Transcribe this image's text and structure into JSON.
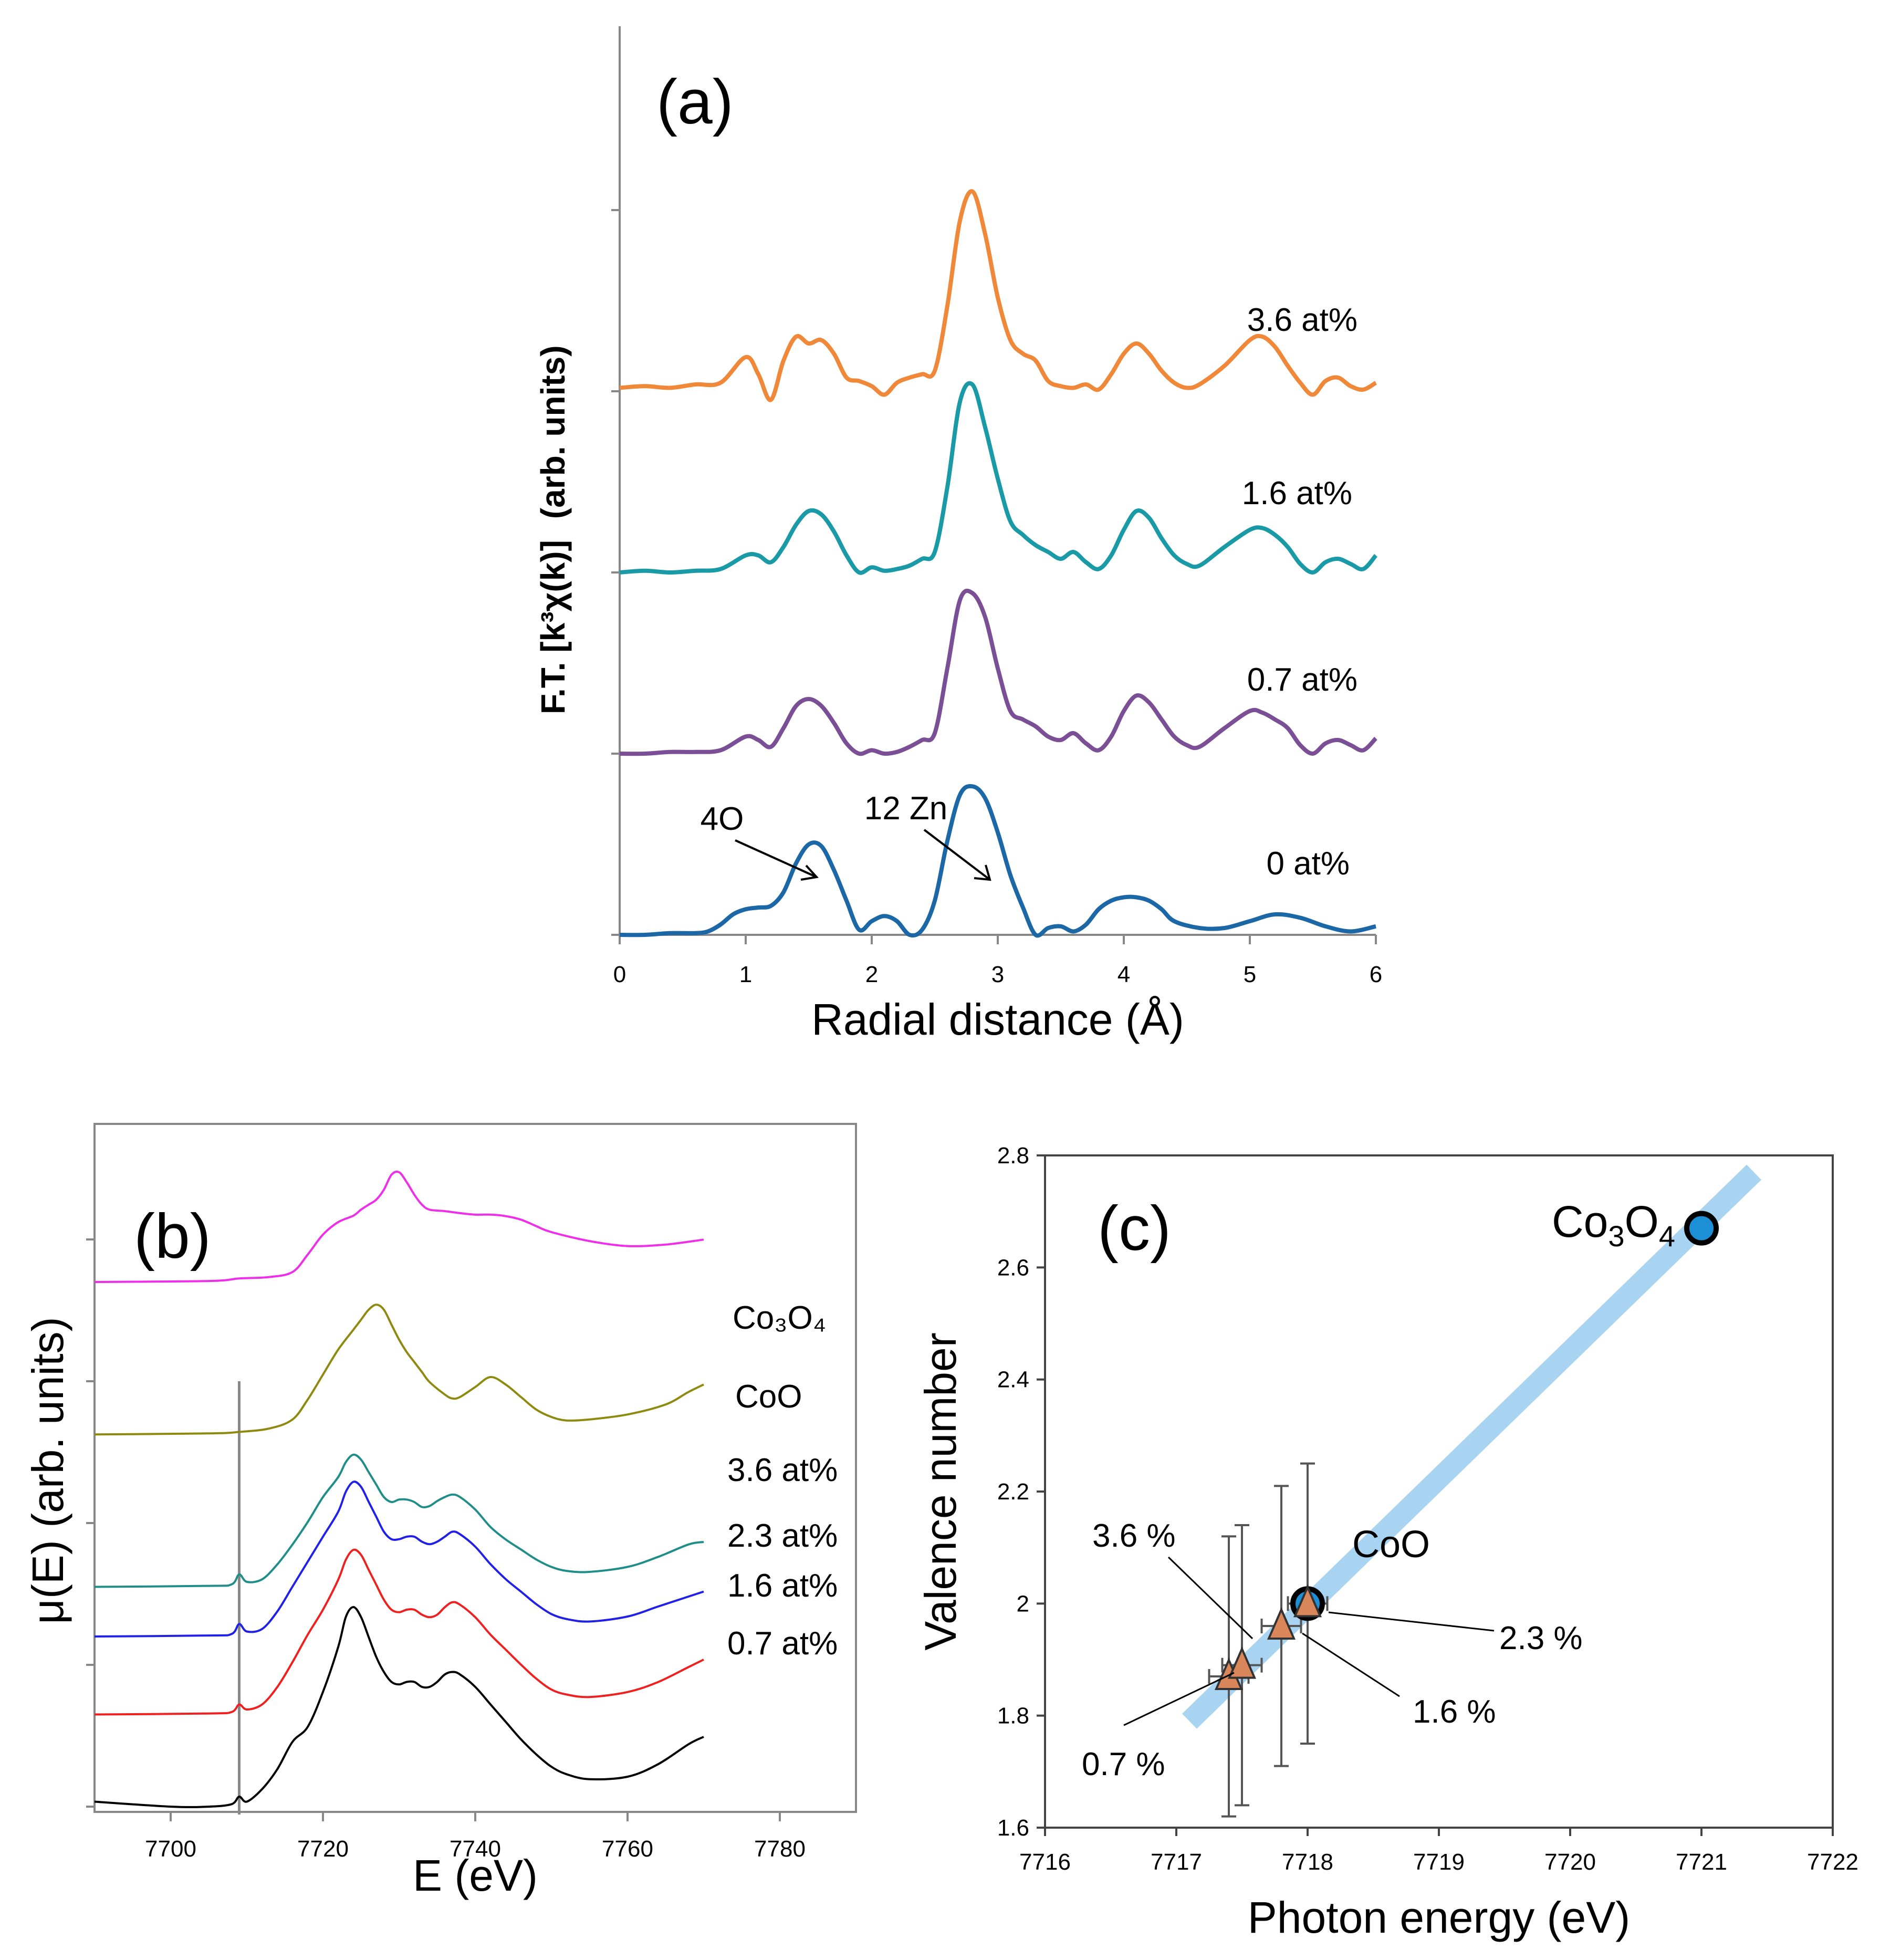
{
  "colors": {
    "a_3.6": "#f0883a",
    "a_1.6": "#1a9aa6",
    "a_0.7": "#7a4f96",
    "a_0": "#1c67a6",
    "b_Co3O4": "#ee2ee8",
    "b_CoO": "#8e8a10",
    "b_3.6": "#1f8e88",
    "b_2.3": "#2020e6",
    "b_1.6": "#ee2020",
    "b_0.7": "#000000",
    "c_fit": "#a9d4f1",
    "c_marker_blue": "#1d8fd6",
    "c_marker_orange": "#d9875a"
  },
  "chart_data": [
    {
      "panel": "(a)",
      "type": "line",
      "xlabel": "Radial distance (Å)",
      "ylabel_main": "F.T. [k³χ(k)]",
      "ylabel_unit": "(arb. units)",
      "xlim": [
        0,
        6
      ],
      "xticks": [
        "0",
        "1",
        "2",
        "3",
        "4",
        "5",
        "6"
      ],
      "series": [
        {
          "name": "3.6 at%",
          "offset": 3,
          "x": [
            0,
            0.2,
            0.4,
            0.6,
            0.8,
            1.0,
            1.1,
            1.2,
            1.3,
            1.4,
            1.5,
            1.6,
            1.7,
            1.8,
            1.9,
            2.0,
            2.1,
            2.2,
            2.3,
            2.4,
            2.5,
            2.6,
            2.7,
            2.8,
            2.9,
            3.0,
            3.1,
            3.2,
            3.3,
            3.4,
            3.5,
            3.6,
            3.7,
            3.8,
            3.9,
            4.0,
            4.1,
            4.2,
            4.3,
            4.4,
            4.5,
            4.6,
            4.8,
            5.0,
            5.1,
            5.2,
            5.3,
            5.4,
            5.5,
            5.6,
            5.7,
            5.8,
            5.9,
            6.0
          ],
          "y": [
            0.02,
            0.03,
            0.02,
            0.04,
            0.05,
            0.2,
            0.1,
            -0.05,
            0.18,
            0.32,
            0.28,
            0.3,
            0.22,
            0.08,
            0.06,
            0.03,
            -0.02,
            0.05,
            0.08,
            0.1,
            0.12,
            0.5,
            1.0,
            1.17,
            0.92,
            0.55,
            0.3,
            0.22,
            0.18,
            0.06,
            0.03,
            0.02,
            0.04,
            0.01,
            0.1,
            0.22,
            0.28,
            0.22,
            0.12,
            0.05,
            0.02,
            0.04,
            0.15,
            0.3,
            0.32,
            0.26,
            0.15,
            0.05,
            -0.02,
            0.06,
            0.08,
            0.03,
            0.01,
            0.05
          ]
        },
        {
          "name": "1.6 at%",
          "offset": 2,
          "x": [
            0,
            0.2,
            0.4,
            0.6,
            0.8,
            1.0,
            1.1,
            1.2,
            1.3,
            1.4,
            1.5,
            1.6,
            1.7,
            1.8,
            1.9,
            2.0,
            2.1,
            2.2,
            2.3,
            2.4,
            2.5,
            2.6,
            2.7,
            2.8,
            2.9,
            3.0,
            3.1,
            3.2,
            3.3,
            3.4,
            3.5,
            3.6,
            3.7,
            3.8,
            3.9,
            4.0,
            4.1,
            4.2,
            4.3,
            4.4,
            4.5,
            4.6,
            4.8,
            5.0,
            5.1,
            5.2,
            5.3,
            5.4,
            5.5,
            5.6,
            5.7,
            5.8,
            5.9,
            6.0
          ],
          "y": [
            0,
            0.01,
            0.0,
            0.01,
            0.02,
            0.1,
            0.1,
            0.06,
            0.15,
            0.28,
            0.36,
            0.34,
            0.24,
            0.1,
            0.0,
            0.03,
            0.01,
            0.02,
            0.04,
            0.08,
            0.12,
            0.5,
            1.0,
            1.1,
            0.85,
            0.55,
            0.3,
            0.22,
            0.16,
            0.12,
            0.08,
            0.12,
            0.06,
            0.02,
            0.1,
            0.25,
            0.36,
            0.32,
            0.2,
            0.1,
            0.05,
            0.04,
            0.15,
            0.25,
            0.26,
            0.22,
            0.15,
            0.05,
            0.0,
            0.06,
            0.08,
            0.05,
            0.02,
            0.1
          ]
        },
        {
          "name": "0.7 at%",
          "offset": 1,
          "x": [
            0,
            0.2,
            0.4,
            0.6,
            0.8,
            1.0,
            1.1,
            1.2,
            1.3,
            1.4,
            1.5,
            1.6,
            1.7,
            1.8,
            1.9,
            2.0,
            2.1,
            2.2,
            2.3,
            2.4,
            2.5,
            2.6,
            2.7,
            2.8,
            2.9,
            3.0,
            3.1,
            3.2,
            3.3,
            3.4,
            3.5,
            3.6,
            3.7,
            3.8,
            3.9,
            4.0,
            4.1,
            4.2,
            4.3,
            4.4,
            4.5,
            4.6,
            4.8,
            5.0,
            5.1,
            5.2,
            5.3,
            5.4,
            5.5,
            5.6,
            5.7,
            5.8,
            5.9,
            6.0
          ],
          "y": [
            0,
            0.0,
            0.01,
            0.01,
            0.02,
            0.1,
            0.08,
            0.04,
            0.15,
            0.28,
            0.32,
            0.28,
            0.18,
            0.06,
            0.0,
            0.02,
            0.0,
            0.01,
            0.04,
            0.08,
            0.12,
            0.5,
            0.9,
            0.94,
            0.8,
            0.5,
            0.25,
            0.2,
            0.16,
            0.1,
            0.08,
            0.12,
            0.06,
            0.02,
            0.1,
            0.25,
            0.34,
            0.3,
            0.2,
            0.1,
            0.05,
            0.04,
            0.15,
            0.25,
            0.24,
            0.2,
            0.15,
            0.05,
            0.0,
            0.06,
            0.08,
            0.05,
            0.02,
            0.09
          ]
        },
        {
          "name": "0 at%",
          "offset": 0,
          "x": [
            0,
            0.2,
            0.4,
            0.6,
            0.7,
            0.8,
            0.9,
            1.0,
            1.1,
            1.2,
            1.3,
            1.4,
            1.5,
            1.6,
            1.7,
            1.8,
            1.9,
            2.0,
            2.1,
            2.2,
            2.3,
            2.4,
            2.5,
            2.6,
            2.7,
            2.8,
            2.9,
            3.0,
            3.1,
            3.2,
            3.3,
            3.4,
            3.5,
            3.6,
            3.7,
            3.8,
            3.9,
            4.0,
            4.1,
            4.2,
            4.3,
            4.4,
            4.6,
            4.8,
            5.0,
            5.2,
            5.4,
            5.6,
            5.8,
            6.0
          ],
          "y": [
            0,
            0.0,
            0.01,
            0.01,
            0.02,
            0.06,
            0.12,
            0.15,
            0.16,
            0.17,
            0.25,
            0.42,
            0.53,
            0.52,
            0.38,
            0.2,
            0.03,
            0.08,
            0.11,
            0.08,
            0.0,
            0.03,
            0.2,
            0.55,
            0.82,
            0.87,
            0.8,
            0.6,
            0.35,
            0.16,
            0.0,
            0.04,
            0.05,
            0.02,
            0.06,
            0.15,
            0.2,
            0.22,
            0.22,
            0.2,
            0.15,
            0.08,
            0.04,
            0.04,
            0.08,
            0.12,
            0.1,
            0.05,
            0.02,
            0.05
          ]
        }
      ],
      "annotations": [
        "4O",
        "12 Zn"
      ]
    },
    {
      "panel": "(b)",
      "type": "line",
      "xlabel": "E (eV)",
      "ylabel": "μ(E)  (arb. units)",
      "xlim": [
        7690,
        7790
      ],
      "xticks": [
        "7700",
        "7720",
        "7740",
        "7760",
        "7780"
      ],
      "vertical_line_x": 7709,
      "series": [
        {
          "name": "Co3O4",
          "offset": 7.4,
          "x": [
            7690,
            7705,
            7709,
            7713,
            7716,
            7718,
            7720,
            7722,
            7724,
            7725,
            7726,
            7727,
            7728,
            7729,
            7730,
            7731,
            7732,
            7733,
            7734,
            7736,
            7738,
            7740,
            7742,
            7744,
            7746,
            7748,
            7750,
            7755,
            7760,
            7765,
            7770
          ],
          "y": [
            0,
            0.02,
            0.07,
            0.1,
            0.2,
            0.55,
            0.95,
            1.2,
            1.33,
            1.45,
            1.55,
            1.65,
            1.85,
            2.15,
            2.2,
            2.0,
            1.75,
            1.55,
            1.45,
            1.42,
            1.38,
            1.35,
            1.35,
            1.32,
            1.25,
            1.12,
            1.0,
            0.82,
            0.72,
            0.75,
            0.85
          ]
        },
        {
          "name": "CoO",
          "offset": 5.25,
          "x": [
            7690,
            7705,
            7709,
            7713,
            7716,
            7718,
            7720,
            7722,
            7724,
            7725,
            7726,
            7727,
            7728,
            7729,
            7730,
            7731,
            7732,
            7733,
            7734,
            7736,
            7737,
            7738,
            7740,
            7742,
            7744,
            7746,
            7748,
            7750,
            7752,
            7755,
            7760,
            7765,
            7768,
            7770
          ],
          "y": [
            0,
            0.02,
            0.05,
            0.12,
            0.3,
            0.7,
            1.2,
            1.7,
            2.1,
            2.3,
            2.5,
            2.6,
            2.5,
            2.2,
            1.9,
            1.65,
            1.45,
            1.25,
            1.05,
            0.8,
            0.72,
            0.75,
            0.95,
            1.15,
            1.0,
            0.75,
            0.5,
            0.35,
            0.28,
            0.3,
            0.4,
            0.6,
            0.85,
            1.0
          ]
        },
        {
          "name": "3.6 at%",
          "offset": 3.1,
          "x": [
            7690,
            7705,
            7708,
            7709,
            7710,
            7712,
            7714,
            7716,
            7718,
            7720,
            7722,
            7723,
            7724,
            7725,
            7726,
            7727,
            7728,
            7729,
            7730,
            7731,
            7732,
            7733,
            7734,
            7735,
            7736,
            7737,
            7738,
            7740,
            7742,
            7744,
            7746,
            7748,
            7750,
            7752,
            7755,
            7760,
            7764,
            7768,
            7770
          ],
          "y": [
            0,
            0.02,
            0.05,
            0.25,
            0.1,
            0.15,
            0.45,
            0.85,
            1.3,
            1.8,
            2.2,
            2.5,
            2.65,
            2.55,
            2.3,
            2.05,
            1.8,
            1.7,
            1.75,
            1.75,
            1.7,
            1.6,
            1.62,
            1.72,
            1.8,
            1.85,
            1.8,
            1.55,
            1.2,
            0.95,
            0.75,
            0.55,
            0.4,
            0.32,
            0.3,
            0.4,
            0.6,
            0.85,
            0.9
          ]
        },
        {
          "name": "2.3 at%",
          "offset": 2.4,
          "x": [
            7690,
            7705,
            7708,
            7709,
            7710,
            7712,
            7714,
            7716,
            7718,
            7720,
            7722,
            7723,
            7724,
            7725,
            7726,
            7727,
            7728,
            7729,
            7730,
            7731,
            7732,
            7733,
            7734,
            7735,
            7736,
            7737,
            7738,
            7740,
            7742,
            7744,
            7746,
            7748,
            7750,
            7752,
            7755,
            7760,
            7764,
            7768,
            7770
          ],
          "y": [
            0,
            0.02,
            0.05,
            0.25,
            0.1,
            0.15,
            0.5,
            1.0,
            1.5,
            2.0,
            2.5,
            2.9,
            3.1,
            3.0,
            2.7,
            2.4,
            2.1,
            1.95,
            1.95,
            2.0,
            2.0,
            1.9,
            1.85,
            1.9,
            2.0,
            2.1,
            2.05,
            1.8,
            1.45,
            1.15,
            0.9,
            0.65,
            0.45,
            0.35,
            0.3,
            0.4,
            0.6,
            0.8,
            0.9
          ]
        },
        {
          "name": "1.6 at%",
          "offset": 1.3,
          "x": [
            7690,
            7705,
            7708,
            7709,
            7710,
            7712,
            7714,
            7716,
            7718,
            7720,
            7722,
            7723,
            7724,
            7725,
            7726,
            7727,
            7728,
            7729,
            7730,
            7731,
            7732,
            7733,
            7734,
            7735,
            7736,
            7737,
            7738,
            7740,
            7742,
            7744,
            7746,
            7748,
            7750,
            7752,
            7755,
            7760,
            7764,
            7768,
            7770
          ],
          "y": [
            0,
            0.02,
            0.05,
            0.2,
            0.1,
            0.2,
            0.55,
            1.05,
            1.6,
            2.1,
            2.7,
            3.1,
            3.3,
            3.2,
            2.9,
            2.6,
            2.3,
            2.1,
            2.05,
            2.1,
            2.1,
            2.0,
            1.95,
            2.0,
            2.15,
            2.25,
            2.2,
            1.95,
            1.6,
            1.3,
            1.0,
            0.72,
            0.5,
            0.4,
            0.35,
            0.45,
            0.65,
            0.95,
            1.1
          ]
        },
        {
          "name": "0.7 at%",
          "offset": 0,
          "x": [
            7690,
            7700,
            7705,
            7708,
            7709,
            7710,
            7712,
            7714,
            7716,
            7718,
            7720,
            7722,
            7723,
            7724,
            7725,
            7726,
            7727,
            7728,
            7729,
            7730,
            7731,
            7732,
            7733,
            7734,
            7735,
            7736,
            7737,
            7738,
            7740,
            7742,
            7744,
            7746,
            7748,
            7750,
            7752,
            7755,
            7760,
            7764,
            7768,
            7770
          ],
          "y": [
            0.1,
            0.0,
            0.0,
            0.05,
            0.2,
            0.1,
            0.35,
            0.75,
            1.3,
            1.6,
            2.3,
            3.2,
            3.8,
            4.0,
            3.8,
            3.4,
            3.0,
            2.7,
            2.5,
            2.45,
            2.5,
            2.5,
            2.4,
            2.4,
            2.5,
            2.65,
            2.7,
            2.65,
            2.4,
            2.05,
            1.7,
            1.35,
            1.05,
            0.8,
            0.65,
            0.55,
            0.6,
            0.85,
            1.25,
            1.4
          ]
        }
      ],
      "series_labels": [
        "Co₃O₄",
        "CoO",
        "3.6 at%",
        "2.3 at%",
        "1.6 at%",
        "0.7 at%"
      ]
    },
    {
      "panel": "(c)",
      "type": "scatter",
      "xlabel": "Photon energy (eV)",
      "ylabel": "Valence number",
      "xlim": [
        7716,
        7722
      ],
      "ylim": [
        1.6,
        2.8
      ],
      "xticks": [
        "7716",
        "7717",
        "7718",
        "7719",
        "7720",
        "7721",
        "7722"
      ],
      "yticks": [
        "1.6",
        "1.8",
        "2",
        "2.2",
        "2.4",
        "2.6",
        "2.8"
      ],
      "fit_line": {
        "x": [
          7717.1,
          7721.4
        ],
        "y": [
          1.79,
          2.77
        ]
      },
      "references": [
        {
          "name": "Co3O4",
          "x": 7721.0,
          "y": 2.67
        },
        {
          "name": "CoO",
          "x": 7718.0,
          "y": 2.0
        }
      ],
      "samples": [
        {
          "name": "0.7 %",
          "x": 7717.4,
          "y": 1.87,
          "xerr": 0.15,
          "yerr": 0.25
        },
        {
          "name": "3.6 %",
          "x": 7717.5,
          "y": 1.89,
          "xerr": 0.15,
          "yerr": 0.25
        },
        {
          "name": "1.6 %",
          "x": 7717.8,
          "y": 1.96,
          "xerr": 0.15,
          "yerr": 0.25
        },
        {
          "name": "2.3 %",
          "x": 7718.0,
          "y": 2.0,
          "xerr": 0.15,
          "yerr": 0.25
        }
      ],
      "labels": {
        "co3o4_main": "Co",
        "co3o4_sub1": "3",
        "co3o4_o": "O",
        "co3o4_sub2": "4",
        "coo": "CoO"
      }
    }
  ]
}
